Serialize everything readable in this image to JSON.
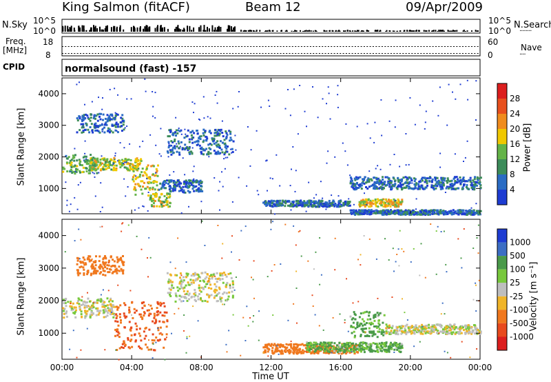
{
  "header": {
    "station": "King Salmon (fitACF)",
    "beam": "Beam 12",
    "date": "09/Apr/2009"
  },
  "panels": {
    "nsky": {
      "left_label": "N.Sky",
      "right_label": "N.Search",
      "ticks_left": [
        "10^5",
        "10^0"
      ],
      "ticks_right": [
        "10^5",
        "10^0"
      ]
    },
    "freq": {
      "left_label_top": "Freq.",
      "left_label_bottom": "[MHz]",
      "right_label": "Nave",
      "ticks_left": [
        "18",
        "8"
      ],
      "ticks_right": [
        "60",
        "0"
      ]
    },
    "cpid": {
      "left_label": "CPID",
      "text": "normalsound (fast) -157"
    }
  },
  "axes": {
    "ylabel": "Slant Range [km]",
    "xlabel": "Time UT",
    "y_ticks": [
      1000,
      2000,
      3000,
      4000
    ],
    "y_range": [
      200,
      4500
    ],
    "x_ticks": [
      "00:00",
      "04:00",
      "08:00",
      "12:00",
      "16:00",
      "20:00",
      "00:00"
    ],
    "x_range_hours": [
      0,
      24
    ]
  },
  "colorbars": {
    "power": {
      "label": "Power [dB]",
      "ticks": [
        "4",
        "8",
        "12",
        "16",
        "20",
        "24",
        "28"
      ],
      "colors": [
        "#1e3cd2",
        "#2a6cc4",
        "#3c8c5a",
        "#64b448",
        "#f0c800",
        "#f08c1e",
        "#e8501e",
        "#dc1e1e"
      ]
    },
    "velocity": {
      "label": "Velocity [m s⁻¹]",
      "ticks": [
        "1000",
        "500",
        "100",
        "25",
        "-25",
        "-100",
        "-500",
        "-1000"
      ],
      "colors": [
        "#1e3cd2",
        "#3c6ec4",
        "#4a9a4a",
        "#78c83c",
        "#bebebe",
        "#f0b428",
        "#f0781e",
        "#e84a1e",
        "#dc1e1e"
      ]
    }
  },
  "chart_data": {
    "type": "heatmap",
    "title": "King Salmon (fitACF) Beam 12 09/Apr/2009",
    "xlabel": "Time UT",
    "ylabel": "Slant Range [km]",
    "xlim": [
      0,
      24
    ],
    "ylim": [
      200,
      4500
    ],
    "power_regions": [
      {
        "t": [
          0.0,
          2.0
        ],
        "r": [
          1500,
          2100
        ],
        "level": 12
      },
      {
        "t": [
          1.5,
          4.5
        ],
        "r": [
          1600,
          2000
        ],
        "level": 16
      },
      {
        "t": [
          4.0,
          5.5
        ],
        "r": [
          800,
          1800
        ],
        "level": 18
      },
      {
        "t": [
          5.0,
          6.2
        ],
        "r": [
          450,
          900
        ],
        "level": 16
      },
      {
        "t": [
          0.8,
          3.5
        ],
        "r": [
          2800,
          3400
        ],
        "level": 6
      },
      {
        "t": [
          6.0,
          9.8
        ],
        "r": [
          2100,
          2900
        ],
        "level": 6
      },
      {
        "t": [
          5.5,
          8.0
        ],
        "r": [
          900,
          1300
        ],
        "level": 6
      },
      {
        "t": [
          11.5,
          16.5
        ],
        "r": [
          450,
          650
        ],
        "level": 6
      },
      {
        "t": [
          16.5,
          24.0
        ],
        "r": [
          1000,
          1400
        ],
        "level": 6
      },
      {
        "t": [
          17.0,
          19.5
        ],
        "r": [
          450,
          700
        ],
        "level": 18
      },
      {
        "t": [
          16.5,
          24.0
        ],
        "r": [
          200,
          350
        ],
        "level": 6
      }
    ],
    "velocity_regions": [
      {
        "t": [
          0.0,
          3.0
        ],
        "r": [
          1500,
          2100
        ],
        "v": 0
      },
      {
        "t": [
          3.0,
          6.0
        ],
        "r": [
          500,
          2000
        ],
        "v": -300
      },
      {
        "t": [
          0.8,
          3.5
        ],
        "r": [
          2800,
          3400
        ],
        "v": -200
      },
      {
        "t": [
          6.0,
          9.8
        ],
        "r": [
          2000,
          2900
        ],
        "v": 0
      },
      {
        "t": [
          11.5,
          17.0
        ],
        "r": [
          400,
          700
        ],
        "v": -150
      },
      {
        "t": [
          14.0,
          19.5
        ],
        "r": [
          450,
          750
        ],
        "v": 80
      },
      {
        "t": [
          16.5,
          18.5
        ],
        "r": [
          900,
          1700
        ],
        "v": 80
      },
      {
        "t": [
          18.5,
          24.0
        ],
        "r": [
          1000,
          1300
        ],
        "v": 0
      }
    ]
  }
}
